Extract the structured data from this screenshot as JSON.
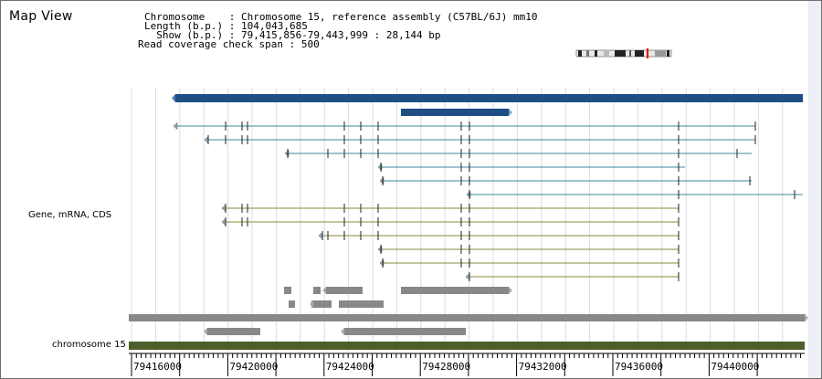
{
  "map_view_title": "Map View",
  "header": {
    "chromosome_key": "Chromosome    ",
    "chromosome_value": ": Chromosome 15, reference assembly (C57BL/6J) mm10",
    "length_key": "Length (b.p.) ",
    "length_value": ": 104,043,685",
    "show_key": "  Show (b.p.) ",
    "show_value": ": 79,415,856-79,443,999 : 28,144 bp",
    "coverage_key": "Read coverage check span ",
    "coverage_value": ": 500"
  },
  "track_labels": {
    "gene_track": "Gene, mRNA, CDS",
    "chromosome_track": "chromosome 15"
  },
  "axis": {
    "tick_labels": [
      "79416000",
      "79420000",
      "79424000",
      "79428000",
      "79432000",
      "79436000",
      "79440000"
    ]
  },
  "colors": {
    "gene": "#1f4e85",
    "mrna_blue": "#3b8aa0",
    "mrna_olive": "#8a8a3a",
    "cds": "#888888",
    "chromosome_band": "#4d5e2a",
    "grid": "#dcdcdc"
  }
}
